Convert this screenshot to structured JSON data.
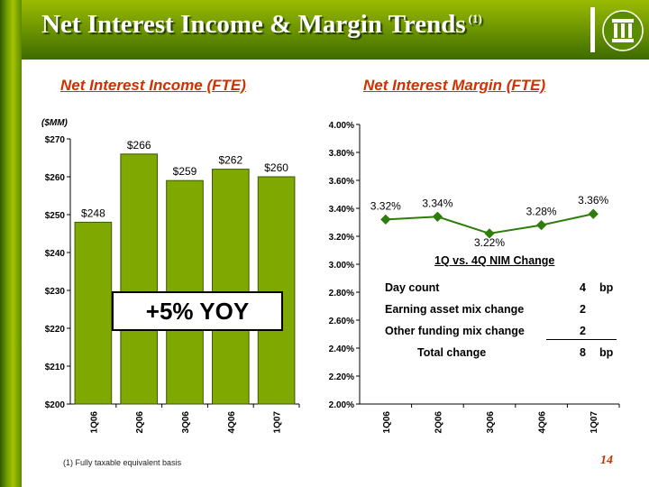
{
  "header": {
    "title": "Net Interest Income & Margin Trends",
    "title_footnote_marker": "(1)",
    "logo": "bank-logo-icon"
  },
  "colors": {
    "bar": "#7fa800",
    "line": "#2e7d0a",
    "accent_text": "#cc3300",
    "header_green": "#6d9400"
  },
  "chart_data": [
    {
      "type": "bar",
      "subtitle": "Net Interest Income (FTE)",
      "unit_label": "($MM)",
      "categories": [
        "1Q06",
        "2Q06",
        "3Q06",
        "4Q06",
        "1Q07"
      ],
      "values": [
        248,
        266,
        259,
        262,
        260
      ],
      "data_labels": [
        "$248",
        "$266",
        "$259",
        "$262",
        "$260"
      ],
      "ylim": [
        200,
        270
      ],
      "y_ticks": [
        200,
        210,
        220,
        230,
        240,
        250,
        260,
        270
      ],
      "y_tick_labels": [
        "$200",
        "$210",
        "$220",
        "$230",
        "$240",
        "$250",
        "$260",
        "$270"
      ],
      "callout": "+5% YOY",
      "grid": false
    },
    {
      "type": "line",
      "subtitle": "Net Interest Margin (FTE)",
      "categories": [
        "1Q06",
        "2Q06",
        "3Q06",
        "4Q06",
        "1Q07"
      ],
      "values": [
        3.32,
        3.34,
        3.22,
        3.28,
        3.36
      ],
      "data_labels": [
        "3.32%",
        "3.34%",
        "3.22%",
        "3.28%",
        "3.36%"
      ],
      "ylim": [
        2.0,
        4.0
      ],
      "y_ticks": [
        2.0,
        2.2,
        2.4,
        2.6,
        2.8,
        3.0,
        3.2,
        3.4,
        3.6,
        3.8,
        4.0
      ],
      "y_tick_labels": [
        "2.00%",
        "2.20%",
        "2.40%",
        "2.60%",
        "2.80%",
        "3.00%",
        "3.20%",
        "3.40%",
        "3.60%",
        "3.80%",
        "4.00%"
      ],
      "grid": false,
      "table": {
        "title": "1Q vs. 4Q NIM Change",
        "rows": [
          {
            "label": "Day count",
            "value": "4",
            "unit": "bp"
          },
          {
            "label": "Earning asset mix change",
            "value": "2",
            "unit": ""
          },
          {
            "label": "Other funding mix change",
            "value": "2",
            "unit": ""
          },
          {
            "label": "Total change",
            "value": "8",
            "unit": "bp"
          }
        ]
      }
    }
  ],
  "footer": {
    "footnote": "(1)  Fully taxable equivalent basis",
    "page_number": "14"
  }
}
